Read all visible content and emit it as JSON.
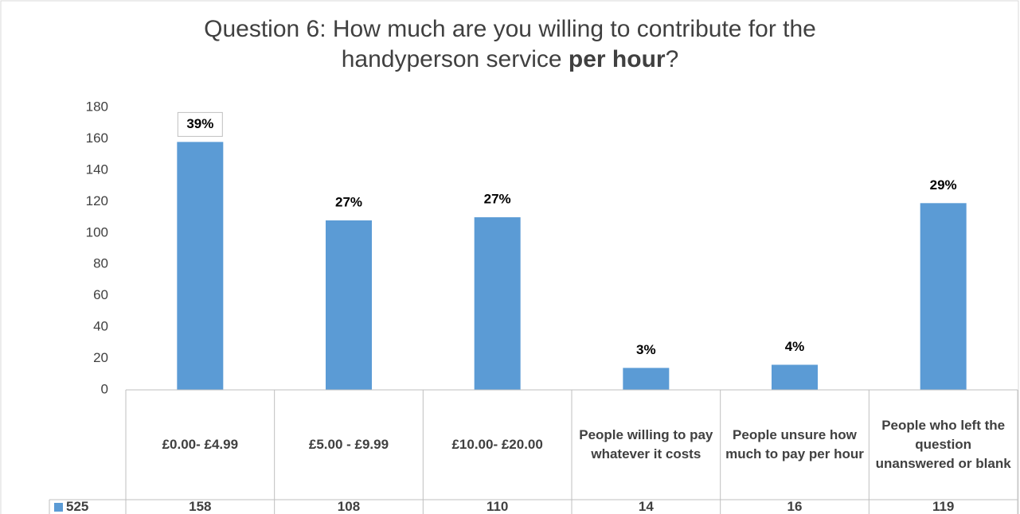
{
  "chart_data": {
    "type": "bar",
    "title": [
      "Question 6: How much are you willing to contribute for the",
      "handyperson service",
      "per hour",
      "?"
    ],
    "categories": [
      "£0.00- £4.99",
      "£5.00 - £9.99",
      "£10.00- £20.00",
      "People willing to pay whatever it costs",
      "People unsure how much to pay per hour",
      "People who left the question unanswered or blank"
    ],
    "series": [
      {
        "name": "525",
        "color": "#5b9bd5",
        "values": [
          158,
          108,
          110,
          14,
          16,
          119
        ],
        "value_labels": [
          "39%",
          "27%",
          "27%",
          "3%",
          "4%",
          "29%"
        ]
      }
    ],
    "ylim": [
      0,
      180
    ],
    "yticks": [
      0,
      20,
      40,
      60,
      80,
      100,
      120,
      140,
      160,
      180
    ],
    "grid": false,
    "data_table": true
  }
}
